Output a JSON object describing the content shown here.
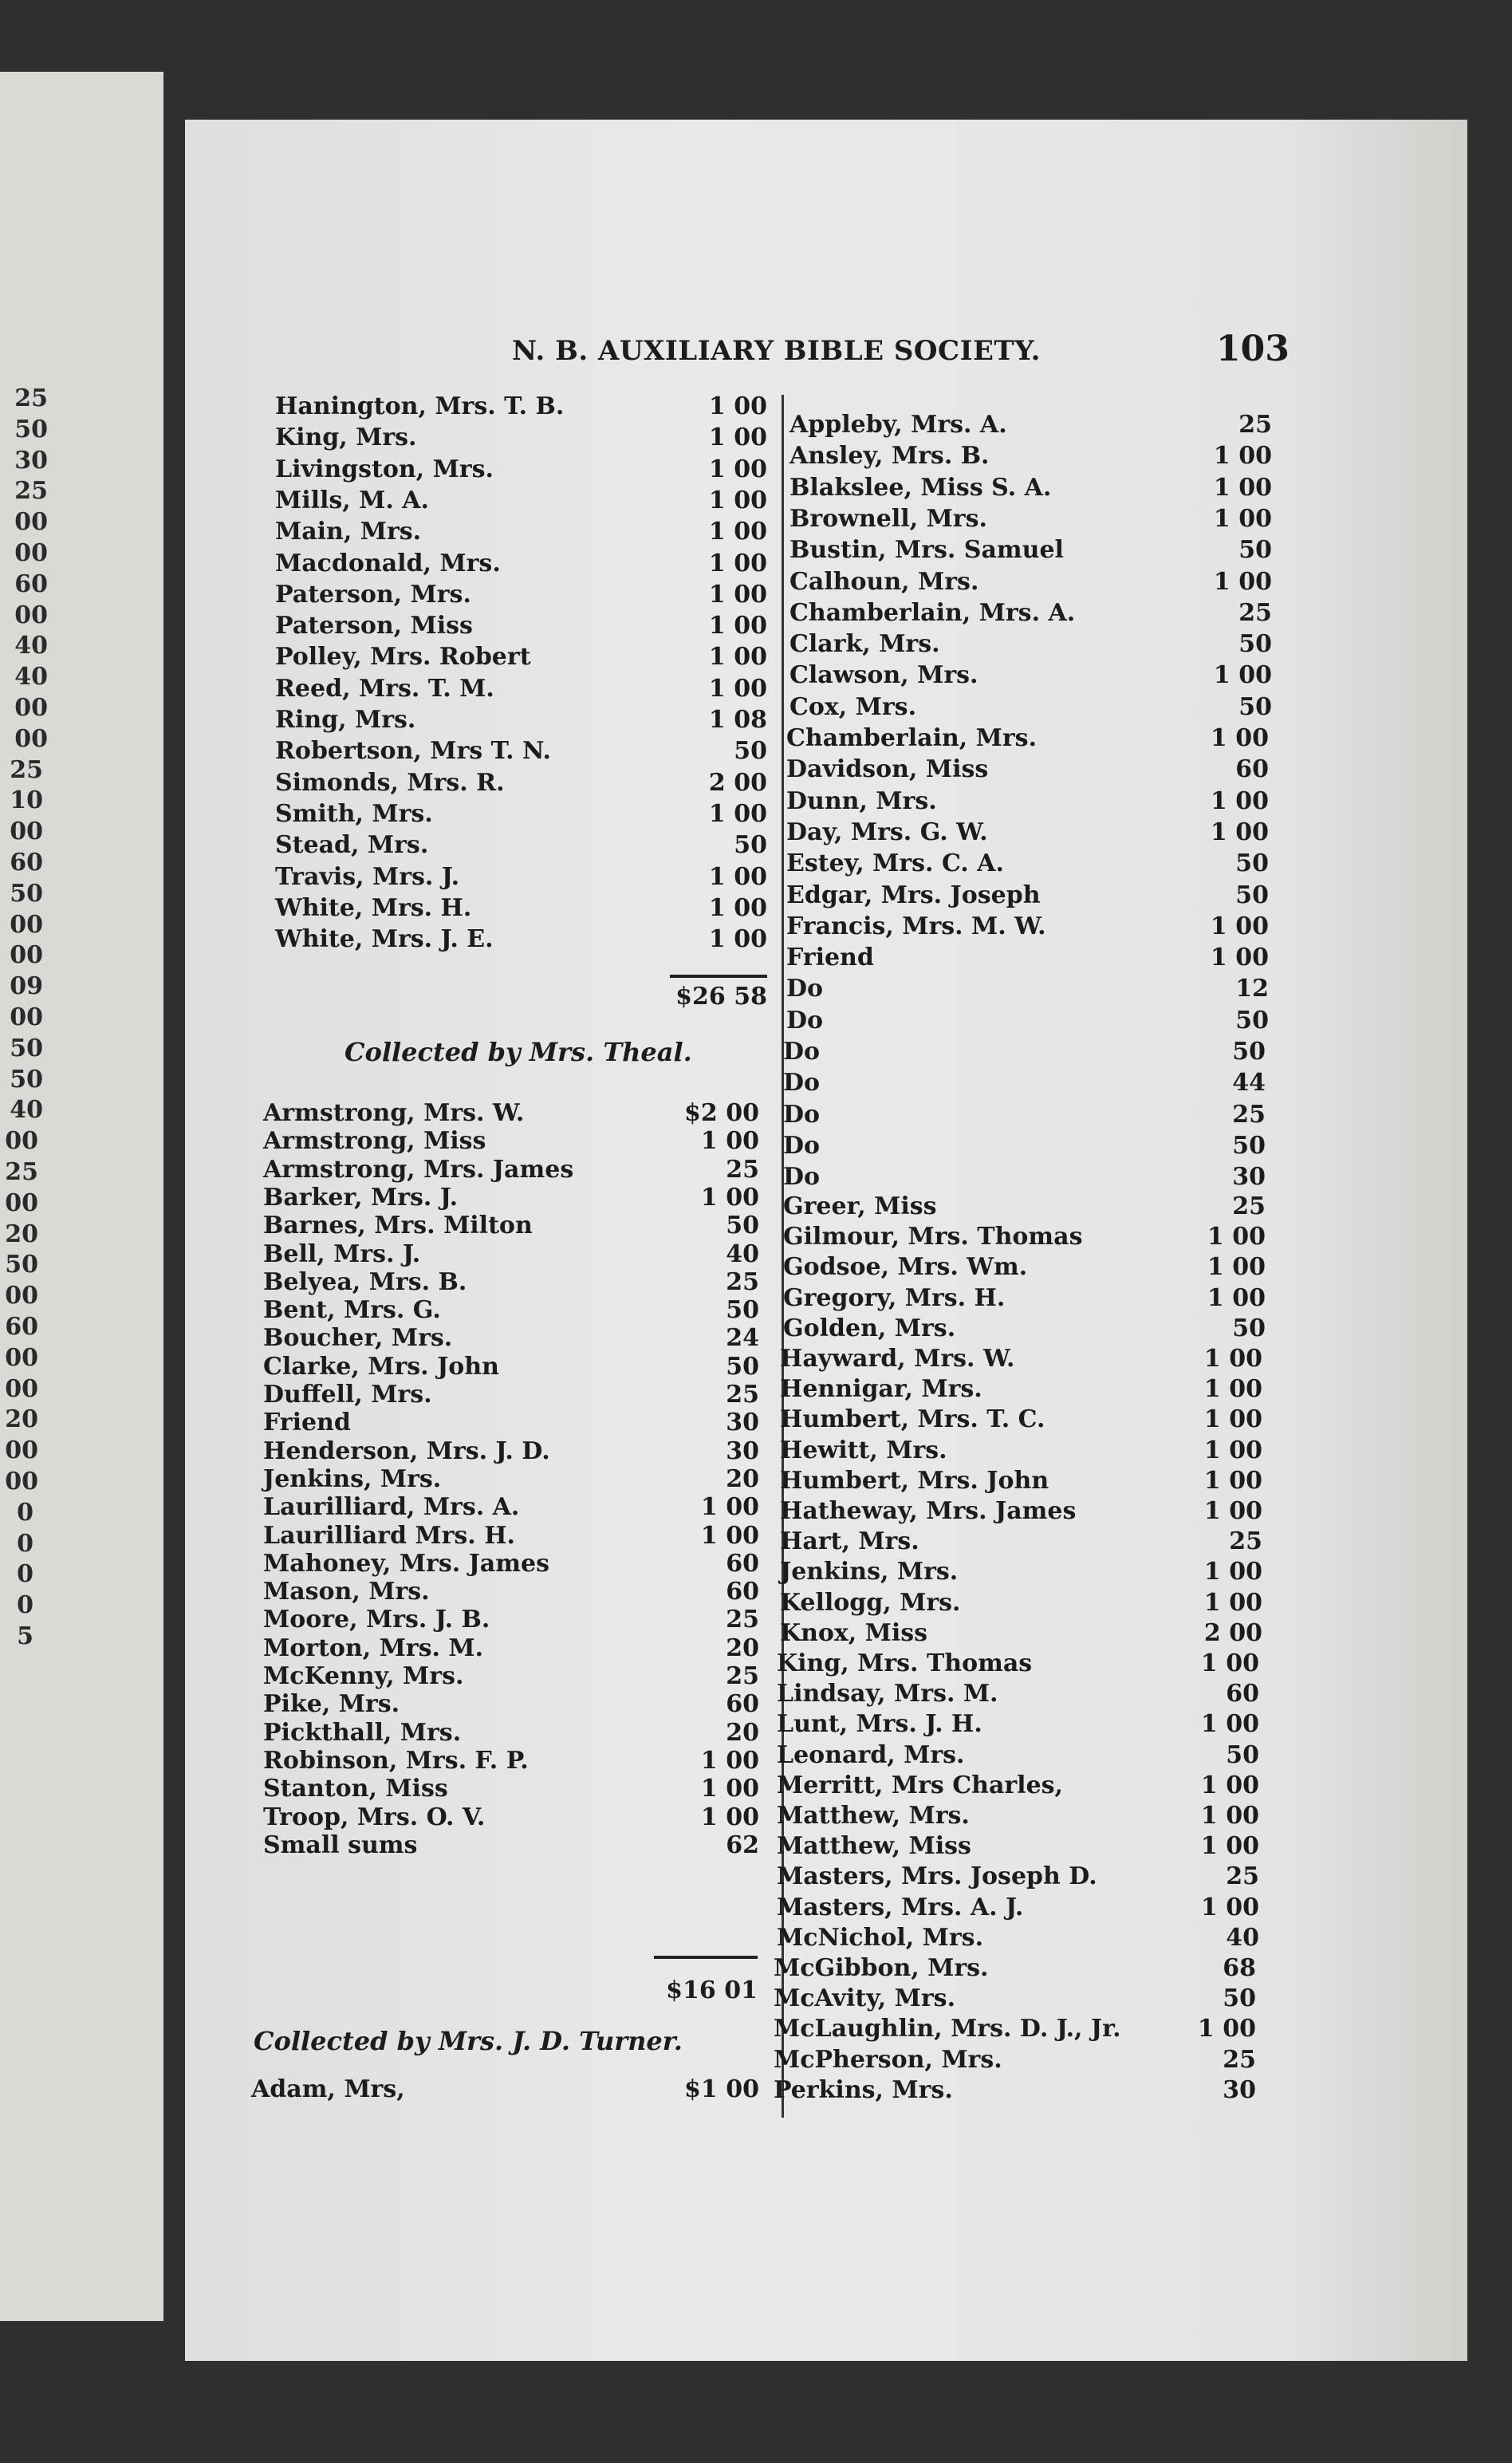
{
  "header": {
    "title": "N. B. AUXILIARY BIBLE SOCIETY.",
    "page_number": "103"
  },
  "previous_page_fragments": [
    "25",
    "50",
    "30",
    "25",
    "00",
    "00",
    "60",
    "00",
    "40",
    "40",
    "00",
    "00",
    "25",
    "10",
    "00",
    "60",
    "50",
    "00",
    "00",
    "09",
    "00",
    "50",
    "50",
    "40",
    "00",
    "25",
    "00",
    "20",
    "50",
    "00",
    "60",
    "00",
    "00",
    "20",
    "00",
    "00",
    "0",
    "0",
    "0",
    "0",
    "5"
  ],
  "left_column": {
    "block1": [
      {
        "name": "Hanington, Mrs. T. B.",
        "amount": "1 00"
      },
      {
        "name": "King, Mrs.",
        "amount": "1 00"
      },
      {
        "name": "Livingston, Mrs.",
        "amount": "1 00"
      },
      {
        "name": "Mills, M. A.",
        "amount": "1 00"
      },
      {
        "name": "Main, Mrs.",
        "amount": "1 00"
      },
      {
        "name": "Macdonald, Mrs.",
        "amount": "1 00"
      },
      {
        "name": "Paterson, Mrs.",
        "amount": "1 00"
      },
      {
        "name": "Paterson, Miss",
        "amount": "1 00"
      },
      {
        "name": "Polley, Mrs. Robert",
        "amount": "1 00"
      },
      {
        "name": "Reed, Mrs. T. M.",
        "amount": "1 00"
      },
      {
        "name": "Ring, Mrs.",
        "amount": "1 08"
      },
      {
        "name": "Robertson, Mrs T. N.",
        "amount": "50"
      },
      {
        "name": "Simonds, Mrs. R.",
        "amount": "2 00"
      },
      {
        "name": "Smith, Mrs.",
        "amount": "1 00"
      },
      {
        "name": "Stead, Mrs.",
        "amount": "50"
      },
      {
        "name": "Travis, Mrs. J.",
        "amount": "1 00"
      },
      {
        "name": "White, Mrs. H.",
        "amount": "1 00"
      },
      {
        "name": "White, Mrs. J. E.",
        "amount": "1 00"
      }
    ],
    "total1": "$26 58",
    "heading2": "Collected by Mrs. Theal.",
    "block2": [
      {
        "name": "Armstrong, Mrs. W.",
        "amount": "$2 00"
      },
      {
        "name": "Armstrong, Miss",
        "amount": "1 00"
      },
      {
        "name": "Armstrong, Mrs. James",
        "amount": "25"
      },
      {
        "name": "Barker, Mrs. J.",
        "amount": "1 00"
      },
      {
        "name": "Barnes, Mrs. Milton",
        "amount": "50"
      },
      {
        "name": "Bell, Mrs. J.",
        "amount": "40"
      },
      {
        "name": "Belyea, Mrs. B.",
        "amount": "25"
      },
      {
        "name": "Bent, Mrs. G.",
        "amount": "50"
      },
      {
        "name": "Boucher, Mrs.",
        "amount": "24"
      },
      {
        "name": "Clarke, Mrs. John",
        "amount": "50"
      },
      {
        "name": "Duffell, Mrs.",
        "amount": "25"
      },
      {
        "name": "Friend",
        "amount": "30"
      },
      {
        "name": "Henderson, Mrs. J. D.",
        "amount": "30"
      },
      {
        "name": "Jenkins, Mrs.",
        "amount": "20"
      },
      {
        "name": "Laurilliard, Mrs. A.",
        "amount": "1 00"
      },
      {
        "name": "Laurilliard Mrs. H.",
        "amount": "1 00"
      },
      {
        "name": "Mahoney, Mrs. James",
        "amount": "60"
      },
      {
        "name": "Mason, Mrs.",
        "amount": "60"
      },
      {
        "name": "Moore, Mrs. J. B.",
        "amount": "25"
      },
      {
        "name": "Morton, Mrs. M.",
        "amount": "20"
      },
      {
        "name": "McKenny, Mrs.",
        "amount": "25"
      },
      {
        "name": "Pike, Mrs.",
        "amount": "60"
      },
      {
        "name": "Pickthall, Mrs.",
        "amount": "20"
      },
      {
        "name": "Robinson, Mrs. F. P.",
        "amount": "1 00"
      },
      {
        "name": "Stanton, Miss",
        "amount": "1 00"
      },
      {
        "name": "Troop, Mrs. O. V.",
        "amount": "1 00"
      },
      {
        "name": "Small sums",
        "amount": "62"
      }
    ],
    "total2": "$16 01",
    "heading3": "Collected by Mrs. J. D. Turner.",
    "block3": [
      {
        "name": "Adam, Mrs,",
        "amount": "$1 00"
      }
    ]
  },
  "right_column": [
    {
      "name": "Appleby, Mrs. A.",
      "amount": "25"
    },
    {
      "name": "Ansley, Mrs. B.",
      "amount": "1 00"
    },
    {
      "name": "Blakslee, Miss S. A.",
      "amount": "1 00"
    },
    {
      "name": "Brownell, Mrs.",
      "amount": "1 00"
    },
    {
      "name": "Bustin, Mrs. Samuel",
      "amount": "50"
    },
    {
      "name": "Calhoun, Mrs.",
      "amount": "1 00"
    },
    {
      "name": "Chamberlain, Mrs. A.",
      "amount": "25"
    },
    {
      "name": "Clark, Mrs.",
      "amount": "50"
    },
    {
      "name": "Clawson, Mrs.",
      "amount": "1 00"
    },
    {
      "name": "Cox, Mrs.",
      "amount": "50"
    },
    {
      "name": "Chamberlain, Mrs.",
      "amount": "1 00"
    },
    {
      "name": "Davidson, Miss",
      "amount": "60"
    },
    {
      "name": "Dunn, Mrs.",
      "amount": "1 00"
    },
    {
      "name": "Day, Mrs. G. W.",
      "amount": "1 00"
    },
    {
      "name": "Estey, Mrs. C. A.",
      "amount": "50"
    },
    {
      "name": "Edgar, Mrs. Joseph",
      "amount": "50"
    },
    {
      "name": "Francis, Mrs. M. W.",
      "amount": "1 00"
    },
    {
      "name": "Friend",
      "amount": "1 00"
    },
    {
      "name": "Do",
      "amount": "12"
    },
    {
      "name": "Do",
      "amount": "50"
    },
    {
      "name": "Do",
      "amount": "50"
    },
    {
      "name": "Do",
      "amount": "44"
    },
    {
      "name": "Do",
      "amount": "25"
    },
    {
      "name": "Do",
      "amount": "50"
    },
    {
      "name": "Do",
      "amount": "30"
    },
    {
      "name": "Greer, Miss",
      "amount": "25"
    },
    {
      "name": "Gilmour, Mrs. Thomas",
      "amount": "1 00"
    },
    {
      "name": "Godsoe, Mrs. Wm.",
      "amount": "1 00"
    },
    {
      "name": "Gregory, Mrs. H.",
      "amount": "1 00"
    },
    {
      "name": "Golden, Mrs.",
      "amount": "50"
    },
    {
      "name": "Hayward, Mrs. W.",
      "amount": "1 00"
    },
    {
      "name": "Hennigar, Mrs.",
      "amount": "1 00"
    },
    {
      "name": "Humbert, Mrs. T. C.",
      "amount": "1 00"
    },
    {
      "name": "Hewitt, Mrs.",
      "amount": "1 00"
    },
    {
      "name": "Humbert, Mrs. John",
      "amount": "1 00"
    },
    {
      "name": "Hatheway, Mrs. James",
      "amount": "1 00"
    },
    {
      "name": "Hart, Mrs.",
      "amount": "25"
    },
    {
      "name": "Jenkins, Mrs.",
      "amount": "1 00"
    },
    {
      "name": "Kellogg, Mrs.",
      "amount": "1 00"
    },
    {
      "name": "Knox, Miss",
      "amount": "2 00"
    },
    {
      "name": "King, Mrs. Thomas",
      "amount": "1 00"
    },
    {
      "name": "Lindsay, Mrs. M.",
      "amount": "60"
    },
    {
      "name": "Lunt, Mrs. J. H.",
      "amount": "1 00"
    },
    {
      "name": "Leonard, Mrs.",
      "amount": "50"
    },
    {
      "name": "Merritt, Mrs Charles,",
      "amount": "1 00"
    },
    {
      "name": "Matthew, Mrs.",
      "amount": "1 00"
    },
    {
      "name": "Matthew, Miss",
      "amount": "1 00"
    },
    {
      "name": "Masters, Mrs. Joseph D.",
      "amount": "25"
    },
    {
      "name": "Masters, Mrs. A. J.",
      "amount": "1 00"
    },
    {
      "name": "McNichol, Mrs.",
      "amount": "40"
    },
    {
      "name": "McGibbon, Mrs.",
      "amount": "68"
    },
    {
      "name": "McAvity, Mrs.",
      "amount": "50"
    },
    {
      "name": "McLaughlin, Mrs. D. J., Jr.",
      "amount": "1 00"
    },
    {
      "name": "McPherson, Mrs.",
      "amount": "25"
    },
    {
      "name": "Perkins, Mrs.",
      "amount": "30"
    }
  ]
}
